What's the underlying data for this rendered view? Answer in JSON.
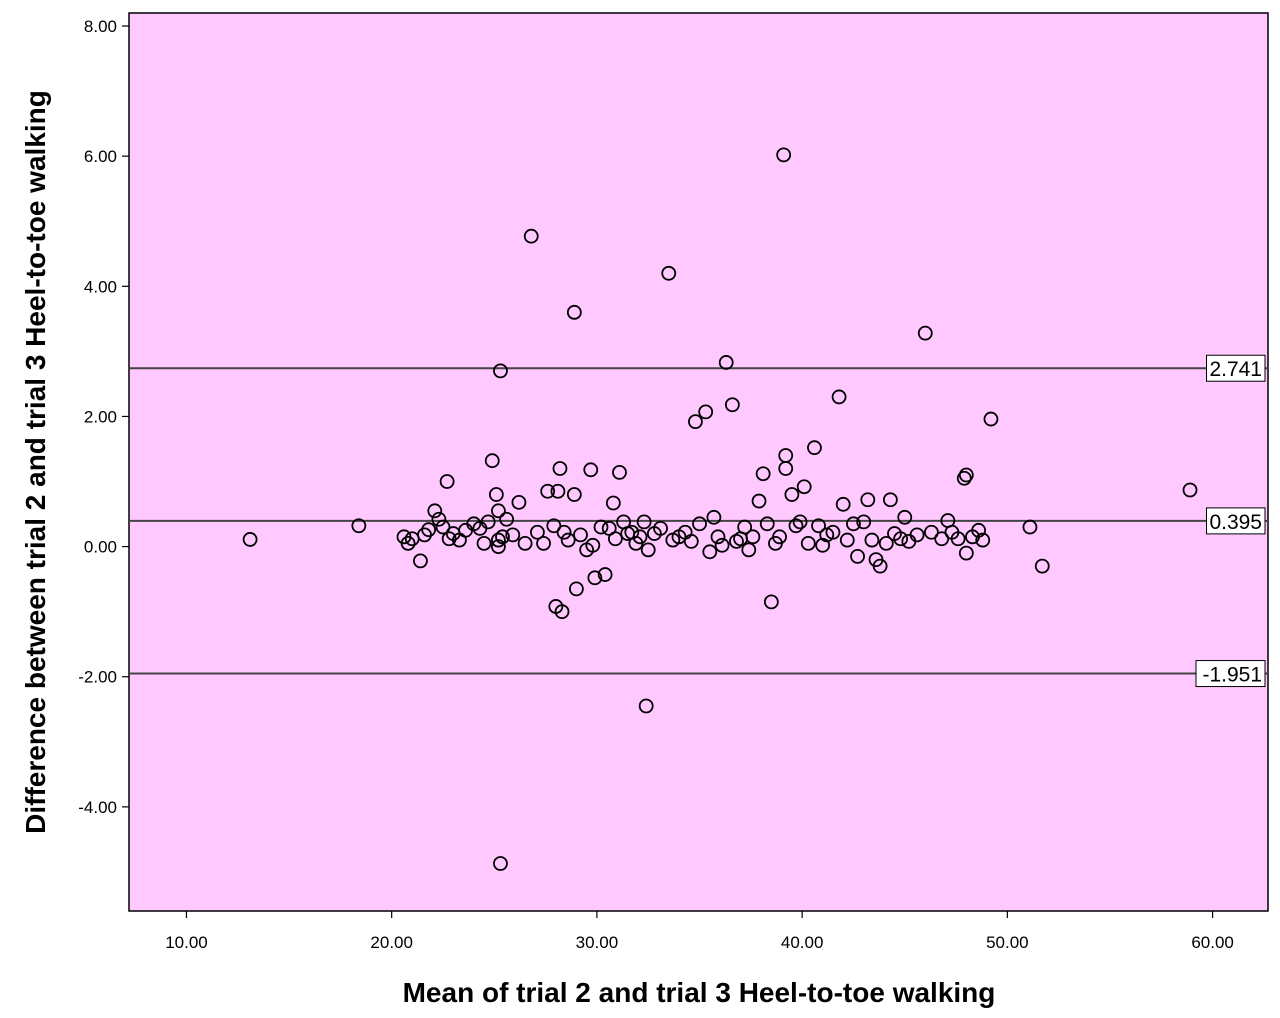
{
  "chart_data": {
    "type": "scatter",
    "title": "",
    "xlabel": "Mean of trial 2 and trial 3 Heel-to-toe walking",
    "ylabel": "Difference between trial 2 and trial 3 Heel-to-toe walking",
    "xlim": [
      7.2,
      62.7
    ],
    "ylim": [
      -5.6,
      8.2
    ],
    "x_ticks": [
      10,
      20,
      30,
      40,
      50,
      60
    ],
    "x_tick_labels": [
      "10.00",
      "20.00",
      "30.00",
      "40.00",
      "50.00",
      "60.00"
    ],
    "y_ticks": [
      -4,
      -2,
      0,
      2,
      4,
      6,
      8
    ],
    "y_tick_labels": [
      "-4.00",
      "-2.00",
      "0.00",
      "2.00",
      "4.00",
      "6.00",
      "8.00"
    ],
    "background_color": "#ffc8ff",
    "marker_color": "#000000",
    "reference_lines": [
      {
        "name": "upper-limit-of-agreement",
        "value": 2.741,
        "label": "2.741"
      },
      {
        "name": "mean-difference",
        "value": 0.395,
        "label": "0.395"
      },
      {
        "name": "lower-limit-of-agreement",
        "value": -1.951,
        "label": "-1.951"
      }
    ],
    "points": [
      [
        13.1,
        0.11
      ],
      [
        18.4,
        0.32
      ],
      [
        20.6,
        0.15
      ],
      [
        20.8,
        0.05
      ],
      [
        21.0,
        0.12
      ],
      [
        21.4,
        -0.22
      ],
      [
        21.6,
        0.18
      ],
      [
        21.8,
        0.26
      ],
      [
        22.1,
        0.55
      ],
      [
        22.3,
        0.42
      ],
      [
        22.5,
        0.3
      ],
      [
        22.7,
        1.0
      ],
      [
        22.8,
        0.12
      ],
      [
        23.0,
        0.2
      ],
      [
        23.3,
        0.1
      ],
      [
        23.6,
        0.25
      ],
      [
        24.0,
        0.35
      ],
      [
        24.3,
        0.28
      ],
      [
        24.5,
        0.05
      ],
      [
        24.7,
        0.38
      ],
      [
        24.9,
        1.32
      ],
      [
        25.1,
        0.8
      ],
      [
        25.2,
        0.55
      ],
      [
        25.3,
        2.7
      ],
      [
        25.2,
        0.1
      ],
      [
        25.2,
        0.0
      ],
      [
        25.4,
        0.15
      ],
      [
        25.3,
        -4.87
      ],
      [
        25.6,
        0.42
      ],
      [
        25.9,
        0.18
      ],
      [
        26.2,
        0.68
      ],
      [
        26.5,
        0.05
      ],
      [
        26.8,
        4.77
      ],
      [
        27.1,
        0.22
      ],
      [
        27.4,
        0.05
      ],
      [
        27.6,
        0.85
      ],
      [
        27.9,
        0.32
      ],
      [
        28.0,
        -0.92
      ],
      [
        28.1,
        0.85
      ],
      [
        28.2,
        1.2
      ],
      [
        28.3,
        -1.0
      ],
      [
        28.4,
        0.22
      ],
      [
        28.6,
        0.1
      ],
      [
        28.9,
        0.8
      ],
      [
        28.9,
        3.6
      ],
      [
        29.0,
        -0.65
      ],
      [
        29.2,
        0.18
      ],
      [
        29.5,
        -0.05
      ],
      [
        29.7,
        1.18
      ],
      [
        29.8,
        0.02
      ],
      [
        29.9,
        -0.48
      ],
      [
        30.2,
        0.3
      ],
      [
        30.4,
        -0.43
      ],
      [
        30.6,
        0.28
      ],
      [
        30.8,
        0.67
      ],
      [
        30.9,
        0.12
      ],
      [
        31.1,
        1.14
      ],
      [
        31.3,
        0.38
      ],
      [
        31.5,
        0.2
      ],
      [
        31.7,
        0.22
      ],
      [
        31.9,
        0.05
      ],
      [
        32.1,
        0.15
      ],
      [
        32.3,
        0.38
      ],
      [
        32.4,
        -2.45
      ],
      [
        32.5,
        -0.05
      ],
      [
        32.8,
        0.2
      ],
      [
        33.1,
        0.28
      ],
      [
        33.5,
        4.2
      ],
      [
        33.7,
        0.1
      ],
      [
        34.0,
        0.15
      ],
      [
        34.3,
        0.22
      ],
      [
        34.6,
        0.08
      ],
      [
        34.8,
        1.92
      ],
      [
        35.0,
        0.35
      ],
      [
        35.3,
        2.07
      ],
      [
        35.5,
        -0.08
      ],
      [
        35.7,
        0.45
      ],
      [
        35.9,
        0.15
      ],
      [
        36.1,
        0.02
      ],
      [
        36.3,
        2.83
      ],
      [
        36.6,
        2.18
      ],
      [
        36.8,
        0.08
      ],
      [
        37.0,
        0.12
      ],
      [
        37.2,
        0.3
      ],
      [
        37.4,
        -0.05
      ],
      [
        37.6,
        0.15
      ],
      [
        37.9,
        0.7
      ],
      [
        38.1,
        1.12
      ],
      [
        38.3,
        0.35
      ],
      [
        38.5,
        -0.85
      ],
      [
        38.7,
        0.05
      ],
      [
        38.9,
        0.15
      ],
      [
        39.1,
        6.02
      ],
      [
        39.2,
        1.4
      ],
      [
        39.2,
        1.2
      ],
      [
        39.5,
        0.8
      ],
      [
        39.7,
        0.32
      ],
      [
        39.9,
        0.38
      ],
      [
        40.1,
        0.92
      ],
      [
        40.3,
        0.05
      ],
      [
        40.6,
        1.52
      ],
      [
        40.8,
        0.32
      ],
      [
        41.0,
        0.02
      ],
      [
        41.2,
        0.18
      ],
      [
        41.5,
        0.22
      ],
      [
        41.8,
        2.3
      ],
      [
        42.0,
        0.65
      ],
      [
        42.2,
        0.1
      ],
      [
        42.5,
        0.35
      ],
      [
        42.7,
        -0.15
      ],
      [
        43.0,
        0.38
      ],
      [
        43.2,
        0.72
      ],
      [
        43.4,
        0.1
      ],
      [
        43.6,
        -0.2
      ],
      [
        43.8,
        -0.3
      ],
      [
        44.1,
        0.05
      ],
      [
        44.3,
        0.72
      ],
      [
        44.5,
        0.2
      ],
      [
        44.8,
        0.12
      ],
      [
        45.0,
        0.45
      ],
      [
        45.2,
        0.08
      ],
      [
        45.6,
        0.18
      ],
      [
        46.0,
        3.28
      ],
      [
        46.3,
        0.22
      ],
      [
        46.8,
        0.12
      ],
      [
        47.1,
        0.4
      ],
      [
        47.3,
        0.22
      ],
      [
        47.6,
        0.12
      ],
      [
        47.9,
        1.05
      ],
      [
        48.0,
        1.1
      ],
      [
        48.0,
        -0.1
      ],
      [
        48.3,
        0.15
      ],
      [
        48.6,
        0.25
      ],
      [
        48.8,
        0.1
      ],
      [
        49.2,
        1.96
      ],
      [
        51.1,
        0.3
      ],
      [
        51.7,
        -0.3
      ],
      [
        58.9,
        0.87
      ]
    ]
  }
}
